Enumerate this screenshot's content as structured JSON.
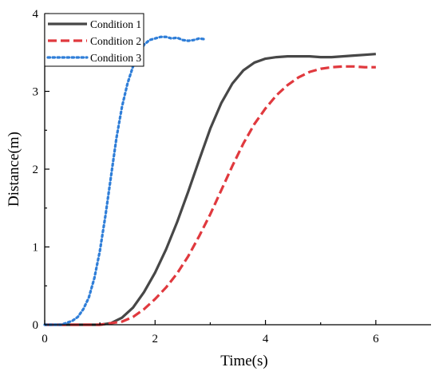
{
  "chart_data": {
    "type": "line",
    "title": "",
    "xlabel": "Time(s)",
    "ylabel": "Distance(m)",
    "xlim": [
      0,
      7
    ],
    "ylim": [
      0,
      4
    ],
    "xticks": [
      0,
      2,
      4,
      6
    ],
    "yticks": [
      0,
      1,
      2,
      3,
      4
    ],
    "grid": false,
    "legend_position": "top-left",
    "series": [
      {
        "name": "Condition 1",
        "color": "#474747",
        "style": "solid",
        "x": [
          0,
          0.5,
          1.0,
          1.2,
          1.4,
          1.6,
          1.8,
          2.0,
          2.2,
          2.4,
          2.6,
          2.8,
          3.0,
          3.2,
          3.4,
          3.6,
          3.8,
          4.0,
          4.2,
          4.4,
          4.6,
          4.8,
          5.0,
          5.2,
          5.4,
          5.6,
          5.8,
          6.0
        ],
        "y": [
          0,
          0,
          0,
          0.02,
          0.09,
          0.22,
          0.42,
          0.67,
          0.97,
          1.32,
          1.71,
          2.12,
          2.52,
          2.85,
          3.1,
          3.27,
          3.37,
          3.42,
          3.44,
          3.45,
          3.45,
          3.45,
          3.44,
          3.44,
          3.45,
          3.46,
          3.47,
          3.48
        ]
      },
      {
        "name": "Condition 2",
        "color": "#e0393e",
        "style": "dashed",
        "x": [
          0,
          0.5,
          1.0,
          1.4,
          1.6,
          1.8,
          2.0,
          2.2,
          2.4,
          2.6,
          2.8,
          3.0,
          3.2,
          3.4,
          3.6,
          3.8,
          4.0,
          4.2,
          4.4,
          4.6,
          4.8,
          5.0,
          5.2,
          5.4,
          5.6,
          5.8,
          6.0
        ],
        "y": [
          0,
          0,
          0,
          0.04,
          0.1,
          0.2,
          0.33,
          0.48,
          0.66,
          0.88,
          1.14,
          1.42,
          1.73,
          2.04,
          2.33,
          2.58,
          2.78,
          2.95,
          3.08,
          3.18,
          3.25,
          3.29,
          3.31,
          3.32,
          3.32,
          3.31,
          3.31
        ]
      },
      {
        "name": "Condition 3",
        "color": "#2f7ed8",
        "style": "dotted",
        "x": [
          0,
          0.3,
          0.5,
          0.6,
          0.7,
          0.8,
          0.9,
          1.0,
          1.1,
          1.2,
          1.3,
          1.4,
          1.5,
          1.6,
          1.7,
          1.8,
          1.9,
          2.0,
          2.1,
          2.2,
          2.3,
          2.4,
          2.5,
          2.6,
          2.7,
          2.8,
          2.9
        ],
        "y": [
          0,
          0,
          0.05,
          0.1,
          0.2,
          0.35,
          0.6,
          0.95,
          1.4,
          1.9,
          2.4,
          2.8,
          3.1,
          3.32,
          3.48,
          3.6,
          3.66,
          3.68,
          3.7,
          3.7,
          3.68,
          3.69,
          3.66,
          3.65,
          3.66,
          3.68,
          3.67
        ]
      }
    ]
  }
}
